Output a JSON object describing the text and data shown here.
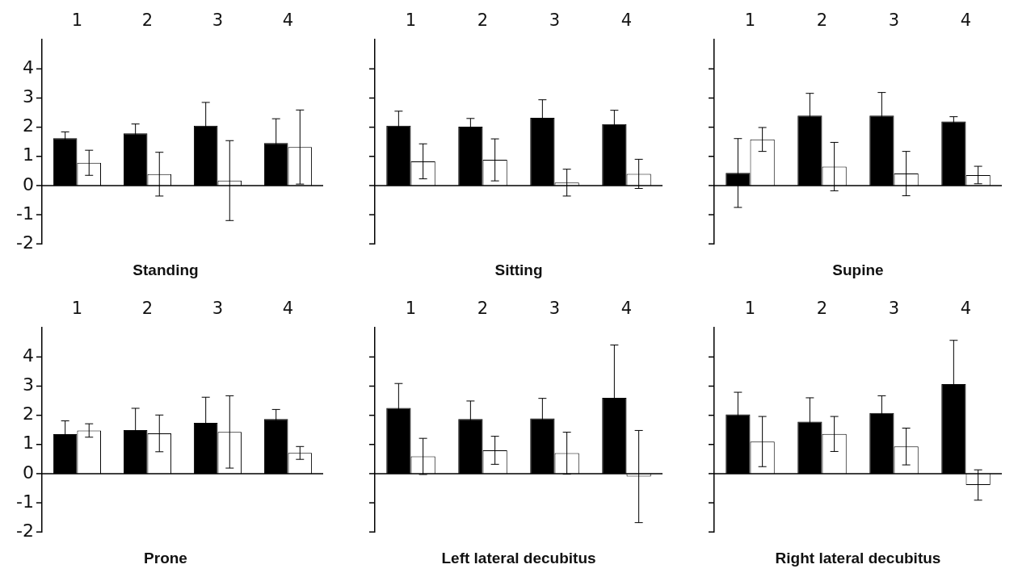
{
  "chart_data": [
    {
      "type": "bar",
      "title": "Standing",
      "categories": [
        "1",
        "2",
        "3",
        "4"
      ],
      "ylim": [
        -2,
        5
      ],
      "yticks": [
        -2,
        -1,
        0,
        1,
        2,
        3,
        4
      ],
      "legend": false,
      "series": [
        {
          "color": "#000000",
          "values": [
            1.62,
            1.79,
            2.05,
            1.46
          ],
          "errors": [
            0.22,
            0.32,
            0.8,
            0.83
          ]
        },
        {
          "color": "#ffffff",
          "values": [
            0.78,
            0.39,
            0.17,
            1.32
          ],
          "errors": [
            0.43,
            0.75,
            1.37,
            1.27
          ]
        }
      ]
    },
    {
      "type": "bar",
      "title": "Sitting",
      "categories": [
        "1",
        "2",
        "3",
        "4"
      ],
      "ylim": [
        -2,
        5
      ],
      "yticks": [
        -2,
        -1,
        0,
        1,
        2,
        3,
        4
      ],
      "tick_labels": "x",
      "legend": false,
      "series": [
        {
          "color": "#000000",
          "values": [
            2.05,
            2.02,
            2.32,
            2.11
          ],
          "errors": [
            0.5,
            0.28,
            0.62,
            0.47
          ]
        },
        {
          "color": "#ffffff",
          "values": [
            0.83,
            0.88,
            0.1,
            0.4
          ],
          "errors": [
            0.6,
            0.72,
            0.46,
            0.5
          ]
        }
      ]
    },
    {
      "type": "bar",
      "title": "Supine",
      "categories": [
        "1",
        "2",
        "3",
        "4"
      ],
      "ylim": [
        -2,
        5
      ],
      "yticks": [
        -2,
        -1,
        0,
        1,
        2,
        3,
        4
      ],
      "tick_labels": "x",
      "legend": false,
      "series": [
        {
          "color": "#000000",
          "values": [
            0.43,
            2.4,
            2.4,
            2.2
          ],
          "errors": [
            1.18,
            0.76,
            0.79,
            0.16
          ]
        },
        {
          "color": "#ffffff",
          "values": [
            1.58,
            0.65,
            0.41,
            0.36
          ],
          "errors": [
            0.41,
            0.83,
            0.76,
            0.3
          ]
        }
      ]
    },
    {
      "type": "bar",
      "title": "Prone",
      "categories": [
        "1",
        "2",
        "3",
        "4"
      ],
      "ylim": [
        -2,
        5
      ],
      "yticks": [
        -2,
        -1,
        0,
        1,
        2,
        3,
        4
      ],
      "legend": false,
      "series": [
        {
          "color": "#000000",
          "values": [
            1.35,
            1.49,
            1.74,
            1.87
          ],
          "errors": [
            0.46,
            0.75,
            0.88,
            0.33
          ]
        },
        {
          "color": "#ffffff",
          "values": [
            1.48,
            1.38,
            1.43,
            0.71
          ],
          "errors": [
            0.23,
            0.63,
            1.24,
            0.22
          ]
        }
      ]
    },
    {
      "type": "bar",
      "title": "Left lateral decubitus",
      "categories": [
        "1",
        "2",
        "3",
        "4"
      ],
      "ylim": [
        -2,
        5
      ],
      "yticks": [
        -2,
        -1,
        0,
        1,
        2,
        3,
        4
      ],
      "tick_labels": "x",
      "legend": false,
      "series": [
        {
          "color": "#000000",
          "values": [
            2.25,
            1.87,
            1.89,
            2.6
          ],
          "errors": [
            0.84,
            0.62,
            0.69,
            1.81
          ]
        },
        {
          "color": "#ffffff",
          "values": [
            0.59,
            0.8,
            0.7,
            -0.1
          ],
          "errors": [
            0.62,
            0.48,
            0.72,
            1.58
          ]
        }
      ]
    },
    {
      "type": "bar",
      "title": "Right lateral decubitus",
      "categories": [
        "1",
        "2",
        "3",
        "4"
      ],
      "ylim": [
        -2,
        5
      ],
      "yticks": [
        -2,
        -1,
        0,
        1,
        2,
        3,
        4
      ],
      "tick_labels": "x",
      "legend": false,
      "series": [
        {
          "color": "#000000",
          "values": [
            2.03,
            1.78,
            2.08,
            3.07
          ],
          "errors": [
            0.76,
            0.82,
            0.59,
            1.5
          ]
        },
        {
          "color": "#ffffff",
          "values": [
            1.1,
            1.36,
            0.93,
            -0.39
          ],
          "errors": [
            0.86,
            0.6,
            0.63,
            0.52
          ]
        }
      ]
    }
  ]
}
